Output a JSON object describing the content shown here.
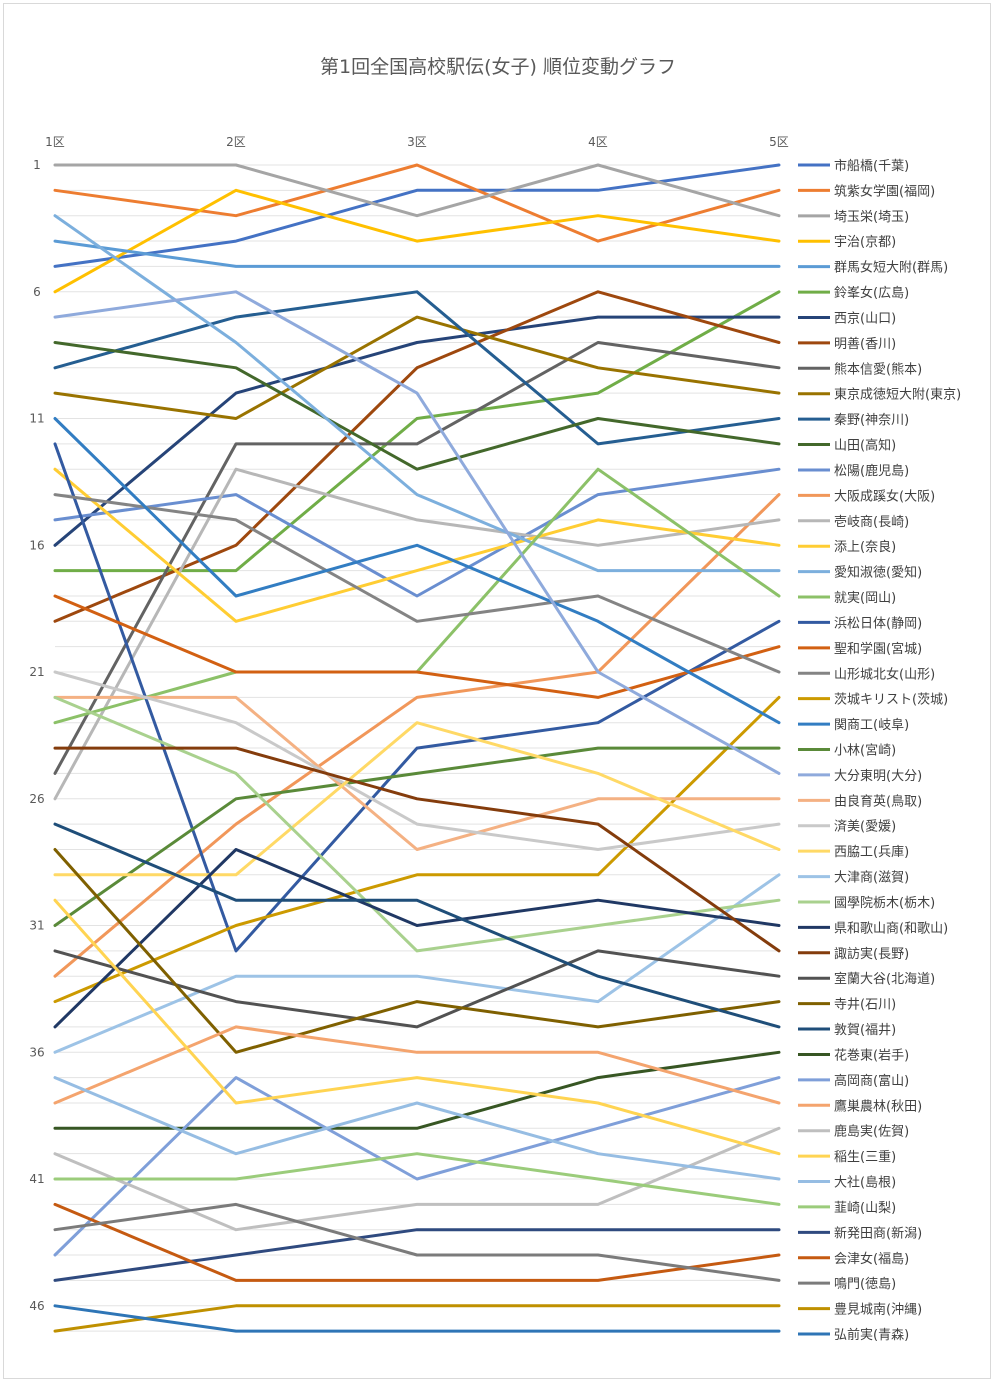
{
  "chart_data": {
    "type": "line",
    "title": "第1回全国高校駅伝(女子) 順位変動グラフ",
    "x": [
      "1区",
      "2区",
      "3区",
      "4区",
      "5区"
    ],
    "y_tick_labels": [
      "1",
      "6",
      "11",
      "16",
      "21",
      "26",
      "31",
      "36",
      "41",
      "46"
    ],
    "y_ticks": [
      1,
      6,
      11,
      16,
      21,
      26,
      31,
      36,
      41,
      46
    ],
    "ylim": [
      1,
      47
    ],
    "y_reversed": true,
    "grid": true,
    "legend_position": "right",
    "series": [
      {
        "name": "市船橋(千葉)",
        "color": "#4472c4",
        "values": [
          5,
          4,
          2,
          2,
          1
        ]
      },
      {
        "name": "筑紫女学園(福岡)",
        "color": "#ed7d31",
        "values": [
          2,
          3,
          1,
          4,
          2
        ]
      },
      {
        "name": "埼玉栄(埼玉)",
        "color": "#a5a5a5",
        "values": [
          1,
          1,
          3,
          1,
          3
        ]
      },
      {
        "name": "宇治(京都)",
        "color": "#ffc000",
        "values": [
          6,
          2,
          4,
          3,
          4
        ]
      },
      {
        "name": "群馬女短大附(群馬)",
        "color": "#5b9bd5",
        "values": [
          4,
          5,
          5,
          5,
          5
        ]
      },
      {
        "name": "鈴峯女(広島)",
        "color": "#70ad47",
        "values": [
          17,
          17,
          11,
          10,
          6
        ]
      },
      {
        "name": "西京(山口)",
        "color": "#264478",
        "values": [
          16,
          10,
          8,
          7,
          7
        ]
      },
      {
        "name": "明善(香川)",
        "color": "#9e480e",
        "values": [
          19,
          16,
          9,
          6,
          8
        ]
      },
      {
        "name": "熊本信愛(熊本)",
        "color": "#636363",
        "values": [
          25,
          12,
          12,
          8,
          9
        ]
      },
      {
        "name": "東京成徳短大附(東京)",
        "color": "#997300",
        "values": [
          10,
          11,
          7,
          9,
          10
        ]
      },
      {
        "name": "秦野(神奈川)",
        "color": "#255e91",
        "values": [
          9,
          7,
          6,
          12,
          11
        ]
      },
      {
        "name": "山田(高知)",
        "color": "#43682b",
        "values": [
          8,
          9,
          13,
          11,
          12
        ]
      },
      {
        "name": "松陽(鹿児島)",
        "color": "#698ed0",
        "values": [
          15,
          14,
          18,
          14,
          13
        ]
      },
      {
        "name": "大阪成蹊女(大阪)",
        "color": "#f1975a",
        "values": [
          33,
          27,
          22,
          21,
          14
        ]
      },
      {
        "name": "壱岐商(長崎)",
        "color": "#b7b7b7",
        "values": [
          26,
          13,
          15,
          16,
          15
        ]
      },
      {
        "name": "添上(奈良)",
        "color": "#ffcd33",
        "values": [
          13,
          19,
          17,
          15,
          16
        ]
      },
      {
        "name": "愛知淑徳(愛知)",
        "color": "#7cafdd",
        "values": [
          3,
          8,
          14,
          17,
          17
        ]
      },
      {
        "name": "就実(岡山)",
        "color": "#8cc168",
        "values": [
          23,
          21,
          21,
          13,
          18
        ]
      },
      {
        "name": "浜松日体(静岡)",
        "color": "#335aa1",
        "values": [
          12,
          32,
          24,
          23,
          19
        ]
      },
      {
        "name": "聖和学園(宮城)",
        "color": "#d26012",
        "values": [
          18,
          21,
          21,
          22,
          20
        ]
      },
      {
        "name": "山形城北女(山形)",
        "color": "#848484",
        "values": [
          14,
          15,
          19,
          18,
          21
        ]
      },
      {
        "name": "茨城キリスト(茨城)",
        "color": "#cc9a00",
        "values": [
          34,
          31,
          29,
          29,
          22
        ]
      },
      {
        "name": "関商工(岐阜)",
        "color": "#327dc2",
        "values": [
          11,
          18,
          16,
          19,
          23
        ]
      },
      {
        "name": "小林(宮崎)",
        "color": "#5a8a39",
        "values": [
          31,
          26,
          25,
          24,
          24
        ]
      },
      {
        "name": "大分東明(大分)",
        "color": "#8faadc",
        "values": [
          7,
          6,
          10,
          21,
          25
        ]
      },
      {
        "name": "由良育英(鳥取)",
        "color": "#f4b183",
        "values": [
          22,
          22,
          28,
          26,
          26
        ]
      },
      {
        "name": "済美(愛媛)",
        "color": "#c9c9c9",
        "values": [
          21,
          23,
          27,
          28,
          27
        ]
      },
      {
        "name": "西脇工(兵庫)",
        "color": "#ffd966",
        "values": [
          29,
          29,
          23,
          25,
          28
        ]
      },
      {
        "name": "大津商(滋賀)",
        "color": "#9dc3e6",
        "values": [
          36,
          33,
          33,
          34,
          29
        ]
      },
      {
        "name": "國學院栃木(栃木)",
        "color": "#a9d18e",
        "values": [
          22,
          25,
          32,
          31,
          30
        ]
      },
      {
        "name": "県和歌山商(和歌山)",
        "color": "#203864",
        "values": [
          35,
          28,
          31,
          30,
          31
        ]
      },
      {
        "name": "諏訪実(長野)",
        "color": "#843c0c",
        "values": [
          24,
          24,
          26,
          27,
          32
        ]
      },
      {
        "name": "室蘭大谷(北海道)",
        "color": "#525252",
        "values": [
          32,
          34,
          35,
          32,
          33
        ]
      },
      {
        "name": "寺井(石川)",
        "color": "#7f6000",
        "values": [
          28,
          36,
          34,
          35,
          34
        ]
      },
      {
        "name": "敦賀(福井)",
        "color": "#1f4e79",
        "values": [
          27,
          30,
          30,
          33,
          35
        ]
      },
      {
        "name": "花巻東(岩手)",
        "color": "#375623",
        "values": [
          39,
          39,
          39,
          37,
          36
        ]
      },
      {
        "name": "高岡商(富山)",
        "color": "#7f9fd9",
        "values": [
          44,
          37,
          41,
          39,
          37
        ]
      },
      {
        "name": "鷹巣農林(秋田)",
        "color": "#f4a46e",
        "values": [
          38,
          35,
          36,
          36,
          38
        ]
      },
      {
        "name": "鹿島実(佐賀)",
        "color": "#bfbfbf",
        "values": [
          40,
          43,
          42,
          42,
          39
        ]
      },
      {
        "name": "稲生(三重)",
        "color": "#ffd452",
        "values": [
          30,
          38,
          37,
          38,
          40
        ]
      },
      {
        "name": "大社(島根)",
        "color": "#96bde3",
        "values": [
          37,
          40,
          38,
          40,
          41
        ]
      },
      {
        "name": "韮崎(山梨)",
        "color": "#9bcc7b",
        "values": [
          41,
          41,
          40,
          41,
          42
        ]
      },
      {
        "name": "新発田商(新潟)",
        "color": "#2f4a7f",
        "values": [
          45,
          44,
          43,
          43,
          43
        ]
      },
      {
        "name": "会津女(福島)",
        "color": "#c55a11",
        "values": [
          42,
          45,
          45,
          45,
          44
        ]
      },
      {
        "name": "鳴門(徳島)",
        "color": "#7b7b7b",
        "values": [
          43,
          42,
          44,
          44,
          45
        ]
      },
      {
        "name": "豊見城南(沖縄)",
        "color": "#bf9000",
        "values": [
          47,
          46,
          46,
          46,
          46
        ]
      },
      {
        "name": "弘前実(青森)",
        "color": "#2e75b6",
        "values": [
          46,
          47,
          47,
          47,
          47
        ]
      }
    ]
  }
}
